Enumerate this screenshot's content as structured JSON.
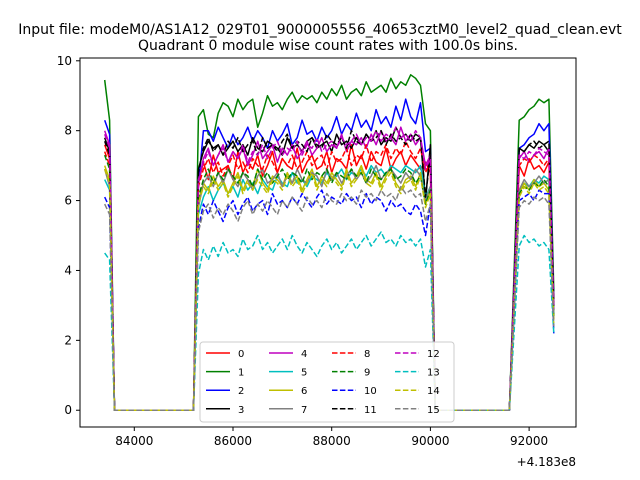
{
  "suptitle": "Input file: modeM0/AS1A12_029T01_9000005556_40653cztM0_level2_quad_clean.evt",
  "chart_data": {
    "type": "line",
    "title": "Quadrant 0 module wise count rates with 100.0s bins.",
    "xlabel": "",
    "ylabel": "",
    "x_offset_label": "+4.183e8",
    "xlim": [
      82900,
      92950
    ],
    "ylim": [
      -0.48,
      10.08
    ],
    "x_ticks": [
      84000,
      86000,
      88000,
      90000,
      92000
    ],
    "x_tick_labels": [
      "84000",
      "86000",
      "88000",
      "90000",
      "92000"
    ],
    "y_ticks": [
      0,
      2,
      4,
      6,
      8,
      10
    ],
    "y_tick_labels": [
      "0",
      "2",
      "4",
      "6",
      "8",
      "10"
    ],
    "grid": false,
    "legend_position": "lower-center",
    "segments": [
      {
        "start": 83400,
        "step": 100,
        "count": 3
      },
      {
        "start": 85300,
        "step": 100,
        "count": 48
      },
      {
        "start": 91800,
        "step": 100,
        "count": 8
      }
    ],
    "gaps_zero": [
      [
        83600,
        85200
      ],
      [
        90100,
        91600
      ]
    ],
    "series": [
      {
        "name": "0",
        "color": "#ff0000",
        "dash": "solid",
        "values": [
          7.6,
          7.2,
          0,
          6.5,
          7.1,
          6.6,
          7.3,
          6.8,
          6.9,
          7.0,
          6.6,
          7.4,
          6.8,
          7.1,
          6.9,
          7.3,
          6.7,
          7.0,
          7.4,
          6.8,
          7.2,
          7.0,
          6.9,
          7.5,
          6.8,
          7.1,
          7.3,
          6.9,
          7.0,
          7.4,
          6.8,
          7.2,
          7.1,
          6.9,
          7.6,
          7.0,
          7.3,
          6.9,
          7.4,
          7.1,
          7.0,
          7.5,
          6.9,
          7.2,
          7.4,
          7.0,
          7.3,
          7.1,
          6.9,
          7.1,
          6.8,
          7.0,
          6.7,
          7.2,
          6.9,
          7.0,
          6.8,
          7.1,
          3.0
        ]
      },
      {
        "name": "1",
        "color": "#008000",
        "dash": "solid",
        "values": [
          9.45,
          8.3,
          0,
          8.4,
          8.6,
          7.9,
          7.8,
          8.5,
          8.8,
          8.7,
          8.4,
          8.9,
          8.6,
          8.8,
          8.9,
          8.1,
          8.5,
          9.0,
          8.7,
          8.8,
          8.6,
          8.9,
          9.1,
          8.8,
          9.0,
          8.9,
          9.0,
          8.8,
          9.1,
          8.9,
          9.2,
          9.0,
          9.3,
          8.9,
          9.1,
          9.2,
          9.0,
          9.4,
          9.1,
          9.2,
          9.3,
          9.1,
          9.5,
          9.2,
          9.4,
          9.3,
          9.6,
          9.5,
          9.3,
          8.2,
          8.0,
          8.3,
          8.4,
          8.6,
          8.7,
          8.9,
          8.8,
          8.9,
          3.4
        ]
      },
      {
        "name": "2",
        "color": "#0000ff",
        "dash": "solid",
        "values": [
          8.3,
          7.9,
          0,
          6.4,
          8.0,
          8.0,
          7.7,
          8.1,
          7.8,
          7.5,
          7.9,
          7.6,
          7.8,
          8.1,
          7.7,
          8.0,
          7.8,
          7.5,
          8.0,
          7.7,
          7.9,
          8.2,
          7.6,
          7.8,
          8.3,
          7.9,
          8.0,
          7.7,
          8.1,
          7.8,
          8.0,
          8.4,
          7.9,
          8.2,
          8.0,
          8.5,
          8.1,
          8.3,
          8.0,
          8.6,
          8.2,
          8.4,
          8.1,
          8.7,
          8.3,
          8.9,
          8.4,
          8.2,
          8.8,
          7.4,
          7.5,
          7.5,
          7.6,
          7.8,
          7.9,
          8.2,
          8.0,
          8.2,
          3.1
        ]
      },
      {
        "name": "3",
        "color": "#000000",
        "dash": "solid",
        "values": [
          7.8,
          7.4,
          0,
          6.9,
          7.4,
          7.7,
          7.5,
          7.6,
          7.3,
          7.5,
          7.7,
          7.4,
          7.6,
          7.3,
          7.8,
          7.5,
          7.4,
          7.7,
          7.6,
          7.5,
          7.3,
          7.8,
          7.5,
          7.6,
          7.4,
          7.7,
          7.8,
          7.5,
          7.6,
          7.7,
          7.4,
          7.9,
          7.6,
          7.7,
          7.5,
          7.8,
          7.6,
          7.9,
          7.7,
          8.0,
          7.6,
          7.8,
          7.7,
          8.1,
          7.8,
          7.9,
          7.7,
          7.9,
          7.8,
          6.0,
          7.6,
          7.5,
          7.4,
          7.6,
          7.5,
          7.7,
          7.6,
          7.4,
          3.0
        ]
      },
      {
        "name": "4",
        "color": "#bf00bf",
        "dash": "solid",
        "values": [
          8.0,
          7.6,
          0,
          6.5,
          7.2,
          7.5,
          7.0,
          7.3,
          7.6,
          7.1,
          7.4,
          7.2,
          7.5,
          7.0,
          7.3,
          7.7,
          7.2,
          7.4,
          7.6,
          7.1,
          7.5,
          7.3,
          7.6,
          7.2,
          7.4,
          7.7,
          7.3,
          7.5,
          7.8,
          7.4,
          7.6,
          7.5,
          7.9,
          7.4,
          7.7,
          7.6,
          7.8,
          7.5,
          7.9,
          7.6,
          8.0,
          7.7,
          7.8,
          7.6,
          8.1,
          7.7,
          7.9,
          7.6,
          7.8,
          7.0,
          7.3,
          7.2,
          7.4,
          7.1,
          7.3,
          7.4,
          7.2,
          7.5,
          3.0
        ]
      },
      {
        "name": "5",
        "color": "#00bfbf",
        "dash": "solid",
        "values": [
          6.6,
          6.3,
          0,
          5.6,
          6.1,
          6.4,
          6.0,
          6.3,
          6.5,
          6.2,
          6.4,
          6.1,
          6.6,
          6.3,
          6.5,
          6.2,
          6.6,
          6.4,
          6.3,
          6.7,
          6.5,
          6.4,
          6.8,
          6.5,
          6.6,
          6.4,
          6.7,
          6.6,
          6.5,
          6.8,
          6.6,
          6.7,
          6.9,
          6.6,
          6.8,
          6.7,
          6.9,
          6.7,
          7.0,
          6.8,
          6.9,
          6.7,
          7.0,
          6.9,
          6.8,
          7.0,
          6.9,
          6.8,
          7.0,
          6.1,
          6.4,
          6.3,
          6.5,
          6.4,
          6.6,
          6.5,
          6.7,
          6.6,
          2.8
        ]
      },
      {
        "name": "6",
        "color": "#bfbf00",
        "dash": "solid",
        "values": [
          7.0,
          6.6,
          0,
          6.0,
          6.5,
          6.3,
          6.7,
          6.4,
          6.6,
          6.2,
          6.5,
          6.8,
          6.3,
          6.6,
          6.4,
          6.9,
          6.5,
          6.3,
          6.7,
          6.6,
          6.4,
          6.8,
          6.5,
          6.7,
          6.3,
          6.6,
          6.9,
          6.4,
          6.7,
          6.5,
          6.8,
          6.6,
          6.4,
          6.9,
          6.5,
          6.7,
          7.0,
          6.6,
          6.5,
          6.8,
          6.4,
          6.7,
          6.9,
          6.5,
          6.3,
          6.6,
          6.7,
          6.4,
          6.8,
          5.9,
          6.3,
          6.2,
          6.5,
          6.3,
          6.6,
          6.4,
          6.5,
          6.3,
          2.6
        ]
      },
      {
        "name": "7",
        "color": "#808080",
        "dash": "solid",
        "values": [
          6.9,
          6.4,
          0,
          5.8,
          6.5,
          6.7,
          6.4,
          6.8,
          6.5,
          6.9,
          6.6,
          6.4,
          6.8,
          6.6,
          6.3,
          6.7,
          6.9,
          6.5,
          6.6,
          6.8,
          6.4,
          6.7,
          6.5,
          6.9,
          6.6,
          6.5,
          6.8,
          6.7,
          6.4,
          6.9,
          6.6,
          6.8,
          6.5,
          6.7,
          6.9,
          6.6,
          6.8,
          6.5,
          6.7,
          7.0,
          6.6,
          6.8,
          6.9,
          6.7,
          6.5,
          6.8,
          6.6,
          6.9,
          6.7,
          6.0,
          6.4,
          6.3,
          6.6,
          6.4,
          6.5,
          6.7,
          6.5,
          6.6,
          2.7
        ]
      },
      {
        "name": "8",
        "color": "#ff0000",
        "dash": "dashed",
        "values": [
          7.4,
          7.0,
          0,
          6.4,
          6.9,
          7.2,
          6.8,
          7.1,
          6.7,
          7.0,
          7.3,
          6.9,
          7.1,
          6.8,
          7.2,
          7.0,
          6.9,
          7.3,
          7.1,
          6.8,
          7.2,
          7.0,
          7.3,
          6.9,
          7.1,
          7.4,
          7.0,
          7.2,
          7.3,
          6.9,
          7.4,
          7.1,
          7.2,
          7.5,
          7.0,
          7.3,
          7.2,
          7.6,
          7.1,
          7.4,
          7.3,
          7.6,
          7.2,
          7.5,
          7.3,
          7.7,
          7.4,
          7.2,
          7.5,
          6.8,
          7.1,
          7.0,
          7.2,
          7.1,
          7.3,
          7.2,
          7.0,
          7.2,
          2.9
        ]
      },
      {
        "name": "9",
        "color": "#008000",
        "dash": "dashed",
        "values": [
          7.3,
          6.9,
          0,
          6.1,
          6.6,
          6.9,
          6.5,
          6.8,
          6.6,
          6.9,
          6.7,
          6.5,
          6.8,
          6.7,
          6.4,
          6.9,
          6.6,
          6.8,
          6.5,
          6.7,
          6.9,
          6.6,
          6.8,
          6.7,
          6.5,
          6.9,
          6.6,
          6.8,
          6.7,
          6.9,
          6.5,
          6.8,
          6.7,
          6.6,
          6.9,
          6.7,
          6.8,
          6.5,
          6.9,
          6.7,
          6.6,
          6.8,
          6.9,
          6.6,
          6.7,
          6.9,
          6.8,
          6.5,
          6.7,
          5.9,
          6.3,
          6.2,
          6.4,
          6.3,
          6.5,
          6.4,
          6.6,
          6.4,
          2.7
        ]
      },
      {
        "name": "10",
        "color": "#0000ff",
        "dash": "dashed",
        "values": [
          6.1,
          5.8,
          0,
          5.2,
          5.9,
          5.6,
          6.0,
          5.7,
          5.4,
          5.8,
          6.0,
          5.6,
          5.9,
          6.1,
          5.7,
          5.9,
          6.0,
          5.6,
          6.2,
          5.9,
          6.0,
          5.8,
          6.1,
          5.9,
          6.2,
          6.0,
          5.8,
          6.1,
          6.3,
          5.9,
          6.1,
          6.0,
          5.9,
          6.2,
          6.0,
          6.1,
          5.8,
          6.2,
          5.9,
          6.1,
          6.0,
          5.7,
          6.0,
          5.8,
          5.9,
          5.7,
          5.6,
          5.9,
          5.7,
          5.0,
          5.9,
          6.0,
          6.1,
          6.2,
          6.0,
          6.3,
          6.2,
          6.2,
          2.2
        ]
      },
      {
        "name": "11",
        "color": "#000000",
        "dash": "dashed",
        "values": [
          7.7,
          7.3,
          0,
          6.8,
          7.5,
          7.8,
          7.4,
          7.6,
          7.3,
          7.7,
          7.5,
          7.8,
          7.4,
          7.6,
          7.7,
          7.3,
          7.8,
          7.5,
          7.6,
          7.4,
          7.7,
          7.9,
          7.5,
          7.7,
          7.6,
          7.4,
          7.8,
          7.6,
          7.5,
          7.9,
          7.7,
          7.6,
          7.8,
          7.5,
          8.0,
          7.7,
          7.6,
          7.9,
          7.7,
          7.8,
          8.0,
          7.6,
          7.9,
          7.7,
          7.8,
          7.6,
          7.9,
          7.7,
          7.8,
          6.1,
          7.3,
          7.5,
          7.4,
          7.6,
          7.7,
          7.5,
          7.6,
          7.7,
          3.0
        ]
      },
      {
        "name": "12",
        "color": "#bf00bf",
        "dash": "dashed",
        "values": [
          7.9,
          7.5,
          0,
          6.6,
          7.1,
          7.4,
          7.0,
          7.3,
          7.5,
          7.1,
          7.4,
          7.2,
          7.6,
          7.1,
          7.4,
          7.3,
          7.6,
          7.2,
          7.5,
          7.7,
          7.3,
          7.5,
          7.4,
          7.7,
          7.3,
          7.6,
          7.5,
          7.8,
          7.4,
          7.6,
          7.7,
          7.5,
          7.8,
          7.6,
          7.7,
          7.9,
          7.6,
          7.8,
          7.7,
          8.0,
          7.7,
          7.9,
          7.8,
          8.1,
          7.8,
          7.9,
          7.7,
          8.0,
          7.8,
          6.9,
          7.2,
          7.3,
          7.2,
          7.4,
          7.3,
          7.5,
          7.4,
          7.3,
          2.9
        ]
      },
      {
        "name": "13",
        "color": "#00bfbf",
        "dash": "dashed",
        "values": [
          4.5,
          4.3,
          0,
          3.9,
          4.6,
          4.3,
          4.7,
          4.4,
          4.8,
          4.5,
          4.6,
          4.4,
          4.9,
          4.6,
          4.7,
          5.0,
          4.6,
          4.8,
          4.5,
          4.7,
          4.9,
          4.6,
          5.0,
          4.7,
          4.5,
          4.8,
          4.6,
          4.4,
          4.7,
          4.9,
          4.6,
          4.8,
          4.5,
          4.7,
          4.9,
          4.6,
          4.8,
          5.0,
          4.7,
          4.9,
          5.1,
          4.8,
          4.9,
          4.7,
          5.0,
          4.8,
          4.9,
          4.7,
          4.9,
          4.1,
          4.6,
          4.7,
          5.0,
          4.8,
          4.9,
          4.7,
          4.8,
          4.6,
          2.2
        ]
      },
      {
        "name": "14",
        "color": "#bfbf00",
        "dash": "dashed",
        "values": [
          6.9,
          6.5,
          0,
          5.9,
          6.4,
          6.2,
          6.6,
          6.3,
          6.5,
          6.1,
          6.4,
          6.7,
          6.2,
          6.5,
          6.3,
          6.6,
          6.4,
          6.2,
          6.6,
          6.5,
          6.3,
          6.7,
          6.4,
          6.6,
          6.2,
          6.5,
          6.8,
          6.3,
          6.6,
          6.4,
          6.7,
          6.5,
          6.3,
          6.8,
          6.4,
          6.6,
          6.9,
          6.5,
          6.4,
          6.7,
          6.3,
          6.6,
          6.8,
          6.4,
          6.2,
          6.5,
          6.6,
          6.3,
          6.7,
          5.8,
          6.2,
          6.1,
          6.4,
          6.2,
          6.5,
          6.3,
          6.4,
          6.2,
          2.5
        ]
      },
      {
        "name": "15",
        "color": "#808080",
        "dash": "dashed",
        "values": [
          5.9,
          5.6,
          0,
          5.1,
          5.7,
          5.9,
          5.5,
          5.8,
          5.6,
          5.9,
          5.7,
          5.4,
          5.8,
          6.0,
          5.6,
          5.9,
          5.7,
          6.0,
          5.8,
          5.6,
          6.0,
          5.8,
          6.1,
          5.9,
          5.7,
          6.1,
          5.9,
          6.0,
          5.8,
          6.2,
          6.0,
          5.9,
          6.2,
          6.0,
          6.1,
          5.9,
          6.3,
          6.1,
          6.2,
          6.0,
          6.3,
          6.1,
          6.2,
          6.0,
          6.4,
          6.2,
          6.3,
          6.1,
          6.2,
          5.4,
          5.9,
          5.8,
          6.0,
          5.9,
          6.1,
          6.0,
          6.1,
          5.9,
          2.4
        ]
      }
    ]
  }
}
